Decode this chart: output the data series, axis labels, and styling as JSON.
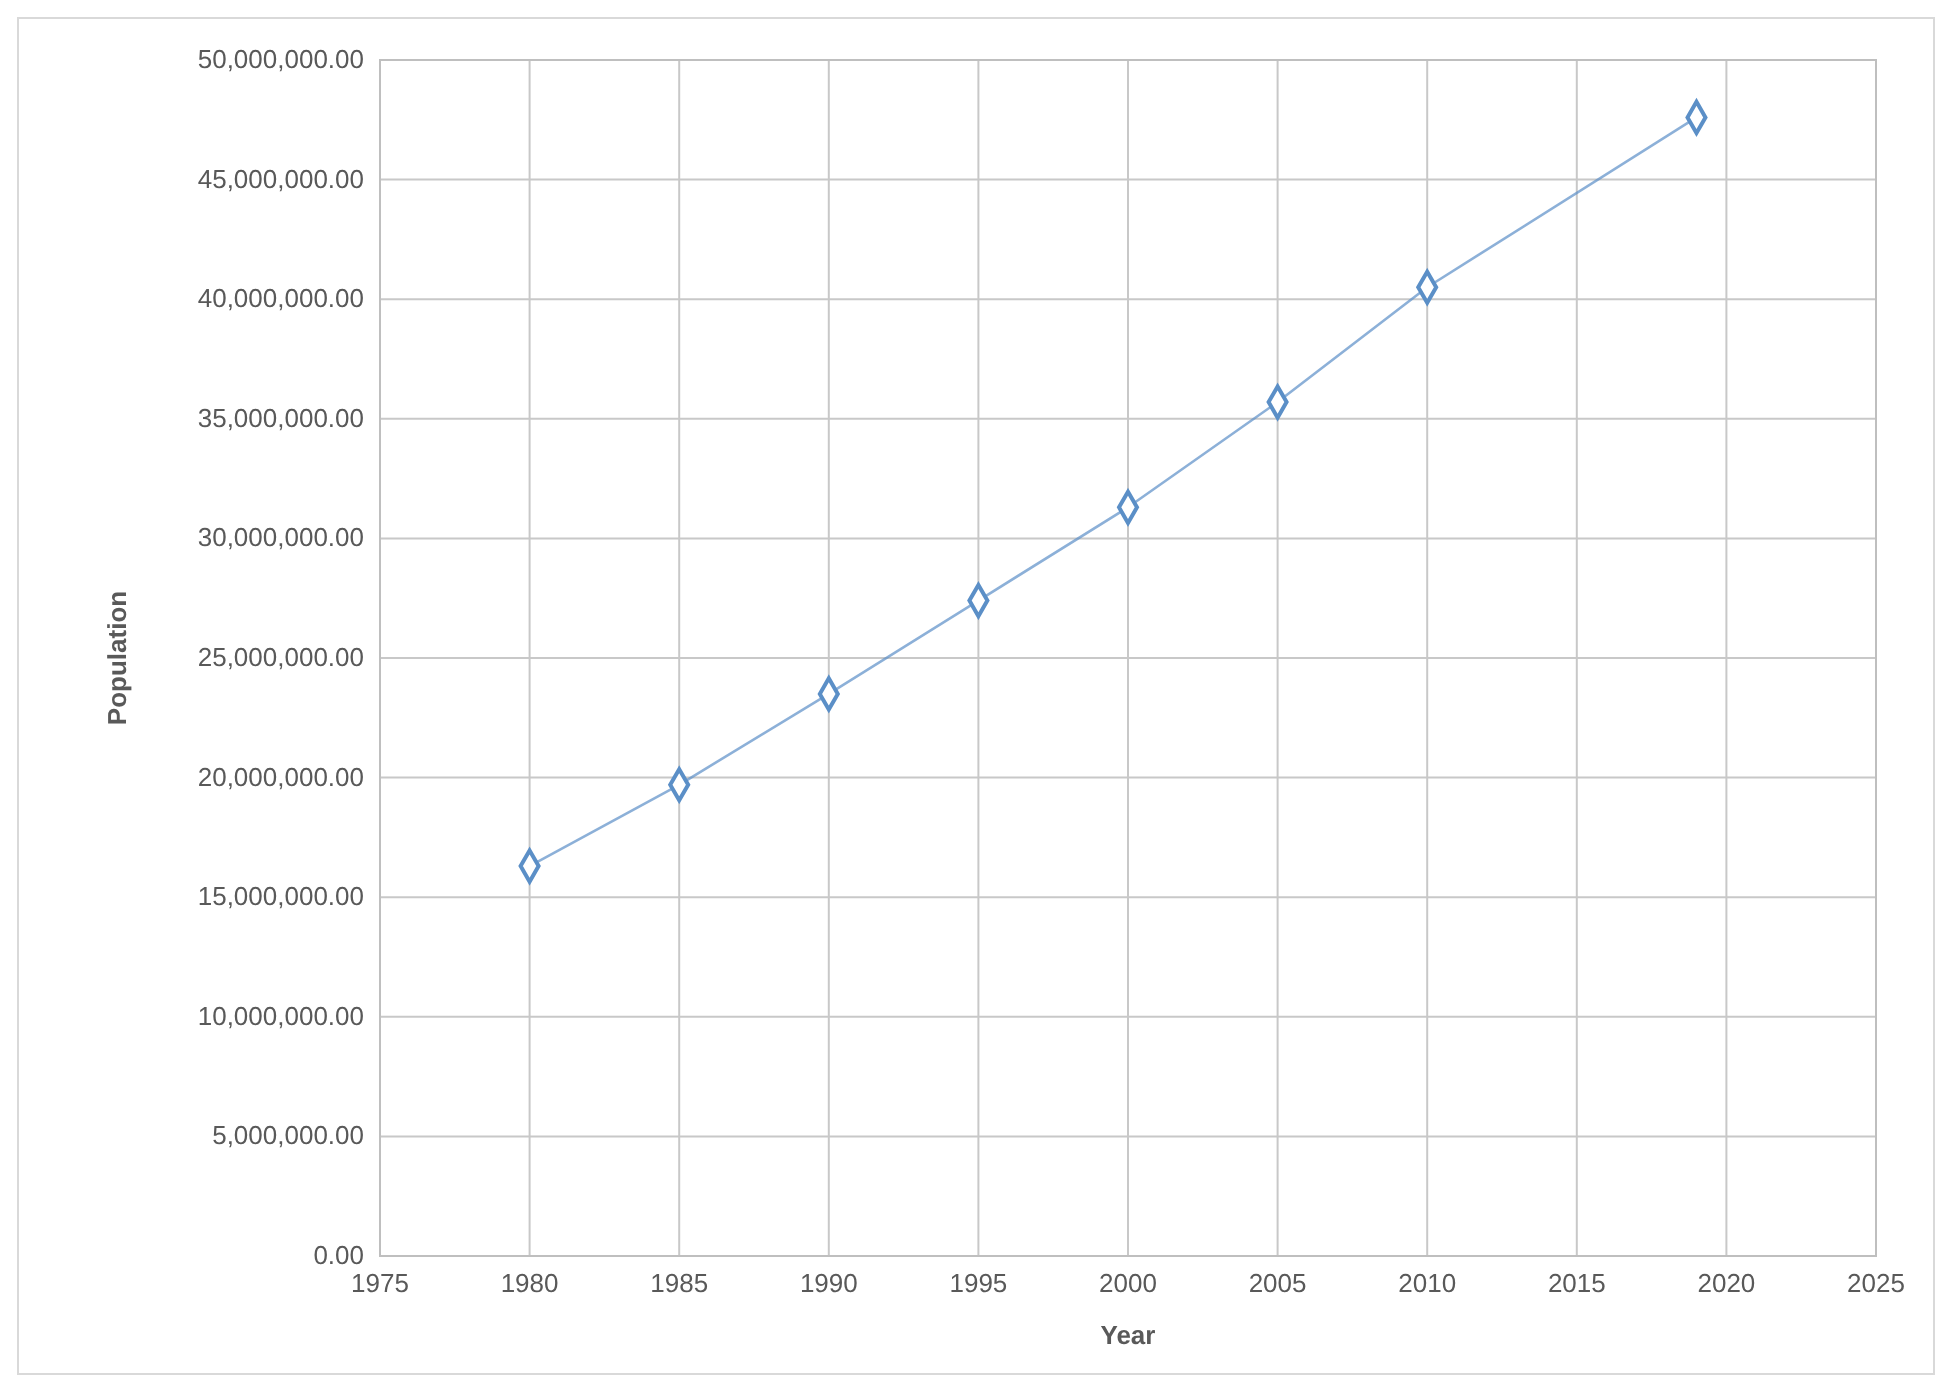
{
  "chart_data": {
    "type": "line",
    "xlabel": "Year",
    "ylabel": "Population",
    "x": [
      1980,
      1985,
      1990,
      1995,
      2000,
      2005,
      2010,
      2019
    ],
    "series": [
      {
        "color": "#5b8fc7",
        "values": [
          16300000,
          19700000,
          23500000,
          27400000,
          31300000,
          35700000,
          40500000,
          47600000
        ]
      }
    ],
    "xlim": [
      1975,
      2025
    ],
    "xticks": [
      1975,
      1980,
      1985,
      1990,
      1995,
      2000,
      2005,
      2010,
      2015,
      2020,
      2025
    ],
    "ylim": [
      0,
      50000000
    ],
    "yticks": [
      {
        "value": 0,
        "label": "0.00"
      },
      {
        "value": 5000000,
        "label": "5,000,000.00"
      },
      {
        "value": 10000000,
        "label": "10,000,000.00"
      },
      {
        "value": 15000000,
        "label": "15,000,000.00"
      },
      {
        "value": 20000000,
        "label": "20,000,000.00"
      },
      {
        "value": 25000000,
        "label": "25,000,000.00"
      },
      {
        "value": 30000000,
        "label": "30,000,000.00"
      },
      {
        "value": 35000000,
        "label": "35,000,000.00"
      },
      {
        "value": 40000000,
        "label": "40,000,000.00"
      },
      {
        "value": 45000000,
        "label": "45,000,000.00"
      },
      {
        "value": 50000000,
        "label": "50,000,000.00"
      }
    ],
    "grid": true,
    "marker": "diamond",
    "line_style": "solid"
  }
}
